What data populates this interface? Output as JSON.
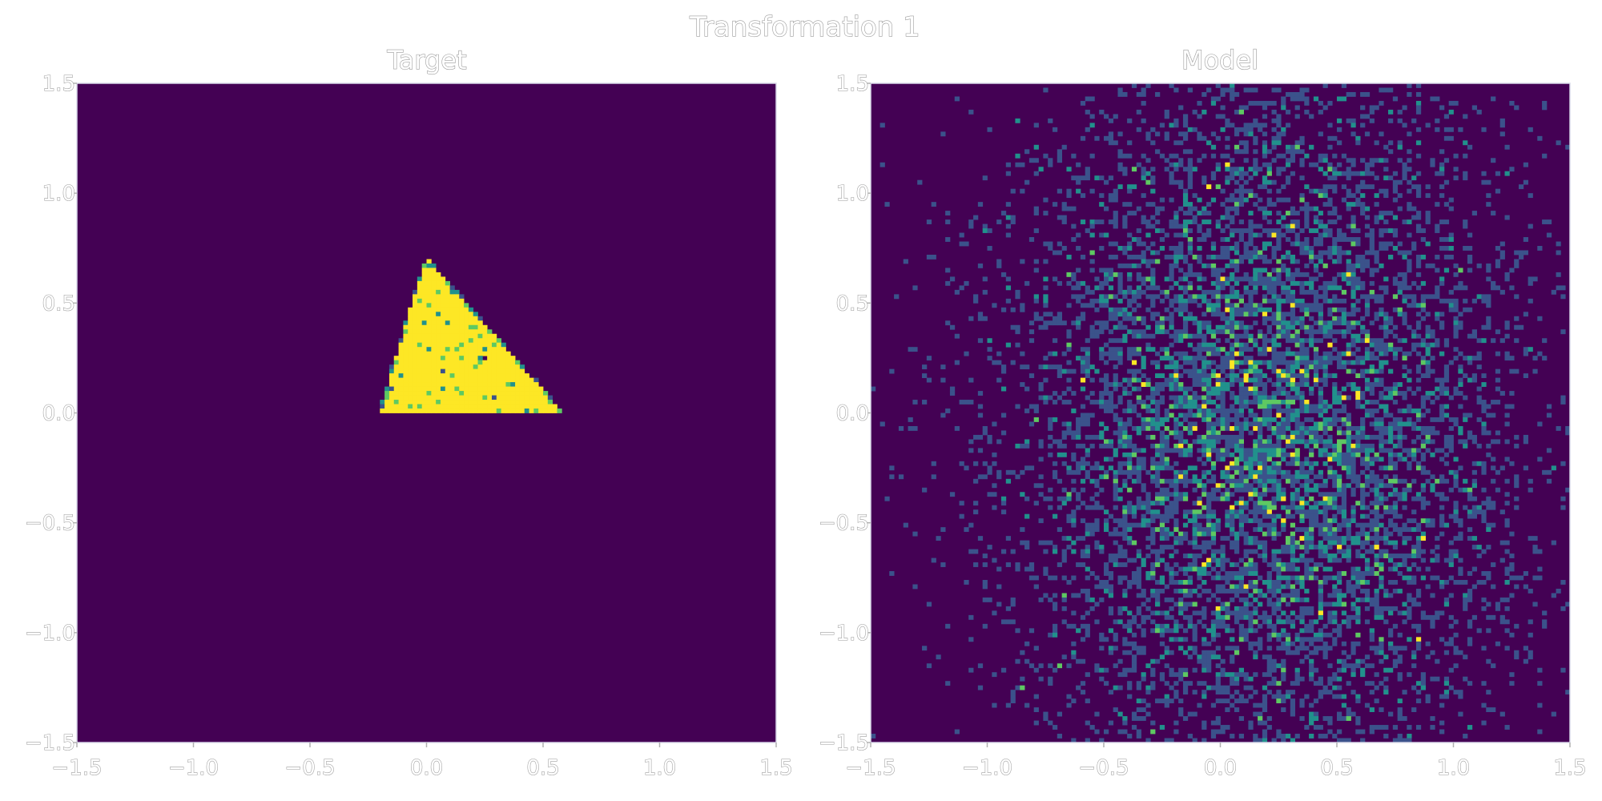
{
  "figure": {
    "title": "Transformation 1"
  },
  "colors": {
    "background": "#440154",
    "low": "#3b528b",
    "mid": "#21918c",
    "high": "#5ec962",
    "peak": "#fde725"
  },
  "chart_data": [
    {
      "type": "heatmap",
      "title": "Target",
      "xlabel": "",
      "ylabel": "",
      "xlim": [
        -1.5,
        1.5
      ],
      "ylim": [
        -1.5,
        1.5
      ],
      "xticks": [
        "−1.5",
        "−1.0",
        "−0.5",
        "0.0",
        "0.5",
        "1.0",
        "1.5"
      ],
      "yticks": [
        "1.5",
        "1.0",
        "0.5",
        "0.0",
        "−0.5",
        "−1.0",
        "−1.5"
      ],
      "grid": false,
      "colormap": "viridis",
      "bins": 300,
      "description": "uniform density on triangle",
      "triangle_vertices": [
        [
          -0.2,
          0.0
        ],
        [
          0.0,
          0.7
        ],
        [
          0.58,
          0.0
        ]
      ]
    },
    {
      "type": "heatmap",
      "title": "Model",
      "xlabel": "",
      "ylabel": "",
      "xlim": [
        -1.5,
        1.5
      ],
      "ylim": [
        -1.5,
        1.5
      ],
      "xticks": [
        "−1.5",
        "−1.0",
        "−0.5",
        "0.0",
        "0.5",
        "1.0",
        "1.5"
      ],
      "yticks": [
        "1.5",
        "1.0",
        "0.5",
        "0.0",
        "−0.5",
        "−1.0",
        "−1.5"
      ],
      "grid": false,
      "colormap": "viridis",
      "bins": 300,
      "description": "diffuse gaussian-like cloud",
      "center": [
        0.2,
        -0.1
      ],
      "spread": [
        0.55,
        0.85
      ]
    }
  ]
}
